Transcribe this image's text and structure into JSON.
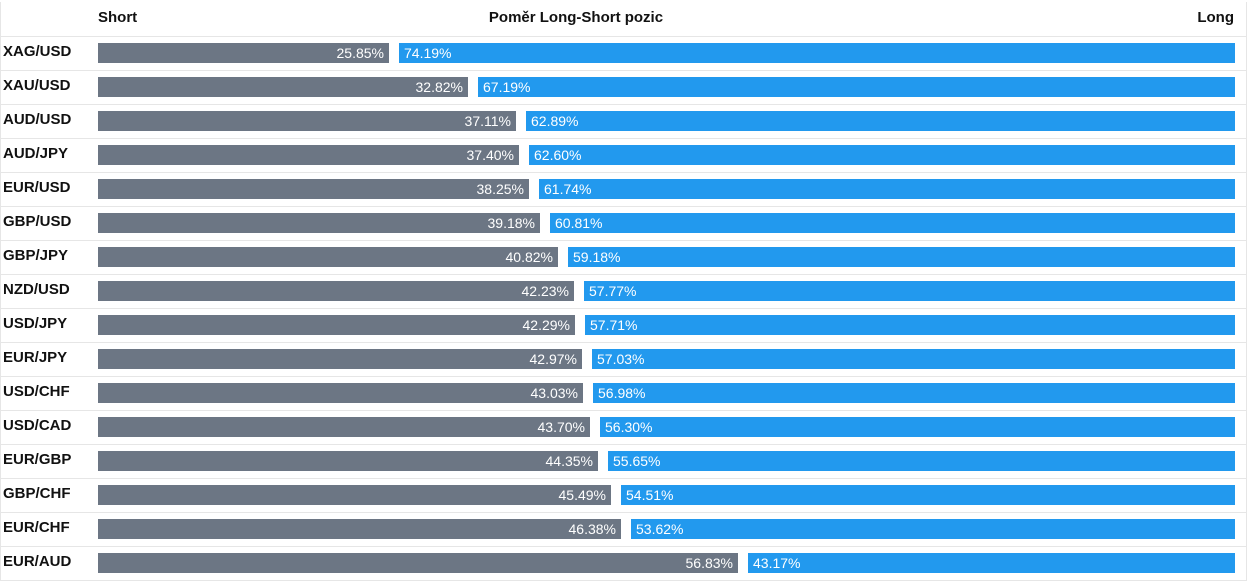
{
  "header": {
    "short_label": "Short",
    "title": "Poměr Long-Short pozic",
    "long_label": "Long"
  },
  "colors": {
    "short": "#6c7684",
    "long": "#2299ee"
  },
  "chart_data": {
    "type": "bar",
    "stacked": true,
    "orientation": "horizontal",
    "title": "Poměr Long-Short pozic",
    "categories": [
      "XAG/USD",
      "XAU/USD",
      "AUD/USD",
      "AUD/JPY",
      "EUR/USD",
      "GBP/USD",
      "GBP/JPY",
      "NZD/USD",
      "USD/JPY",
      "EUR/JPY",
      "USD/CHF",
      "USD/CAD",
      "EUR/GBP",
      "GBP/CHF",
      "EUR/CHF",
      "EUR/AUD"
    ],
    "series": [
      {
        "name": "Short",
        "values": [
          25.85,
          32.82,
          37.11,
          37.4,
          38.25,
          39.18,
          40.82,
          42.23,
          42.29,
          42.97,
          43.03,
          43.7,
          44.35,
          45.49,
          46.38,
          56.83
        ]
      },
      {
        "name": "Long",
        "values": [
          74.19,
          67.19,
          62.89,
          62.6,
          61.74,
          60.81,
          59.18,
          57.77,
          57.71,
          57.03,
          56.98,
          56.3,
          55.65,
          54.51,
          53.62,
          43.17
        ]
      }
    ],
    "value_labels": {
      "short": [
        "25.85%",
        "32.82%",
        "37.11%",
        "37.40%",
        "38.25%",
        "39.18%",
        "40.82%",
        "42.23%",
        "42.29%",
        "42.97%",
        "43.03%",
        "43.70%",
        "44.35%",
        "45.49%",
        "46.38%",
        "56.83%"
      ],
      "long": [
        "74.19%",
        "67.19%",
        "62.89%",
        "62.60%",
        "61.74%",
        "60.81%",
        "59.18%",
        "57.77%",
        "57.71%",
        "57.03%",
        "56.98%",
        "56.30%",
        "55.65%",
        "54.51%",
        "53.62%",
        "43.17%"
      ]
    },
    "xlim": [
      0,
      100
    ],
    "grid": false,
    "legend": "none"
  }
}
